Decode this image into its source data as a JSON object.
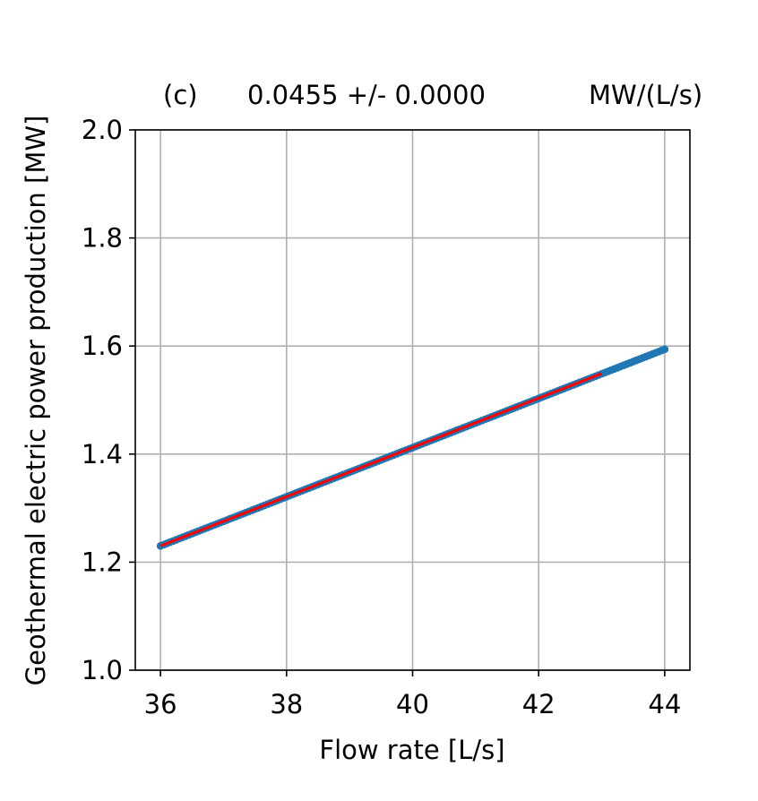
{
  "chart_data": {
    "type": "scatter",
    "title_panel": "(c)",
    "title_value": "0.0455 +/- 0.0000",
    "title_unit": "MW/(L/s)",
    "xlabel": "Flow rate [L/s]",
    "ylabel": "Geothermal electric power production [MW]",
    "xlim": [
      35.6,
      44.4
    ],
    "ylim": [
      1.0,
      2.0
    ],
    "xticks": [
      36,
      38,
      40,
      42,
      44
    ],
    "yticks": [
      1.0,
      1.2,
      1.4,
      1.6,
      1.8,
      2.0
    ],
    "xtick_labels": [
      "36",
      "38",
      "40",
      "42",
      "44"
    ],
    "ytick_labels": [
      "1.0",
      "1.2",
      "1.4",
      "1.6",
      "1.8",
      "2.0"
    ],
    "grid": true,
    "series": [
      {
        "kind": "points",
        "color": "#1f77b4",
        "x_range": [
          36.0,
          44.0
        ],
        "slope": 0.0455,
        "intercept": -0.408,
        "x": [
          36.0,
          36.5,
          37.0,
          37.5,
          38.0,
          38.5,
          39.0,
          39.5,
          40.0,
          40.5,
          41.0,
          41.5,
          42.0,
          42.5,
          43.0,
          43.5,
          44.0
        ],
        "y": [
          1.23,
          1.253,
          1.276,
          1.298,
          1.321,
          1.344,
          1.367,
          1.389,
          1.412,
          1.435,
          1.458,
          1.48,
          1.503,
          1.526,
          1.549,
          1.571,
          1.592
        ]
      },
      {
        "kind": "fit-line",
        "color": "#ff0000",
        "x": [
          36.0,
          43.0
        ],
        "y": [
          1.23,
          1.549
        ]
      }
    ]
  }
}
